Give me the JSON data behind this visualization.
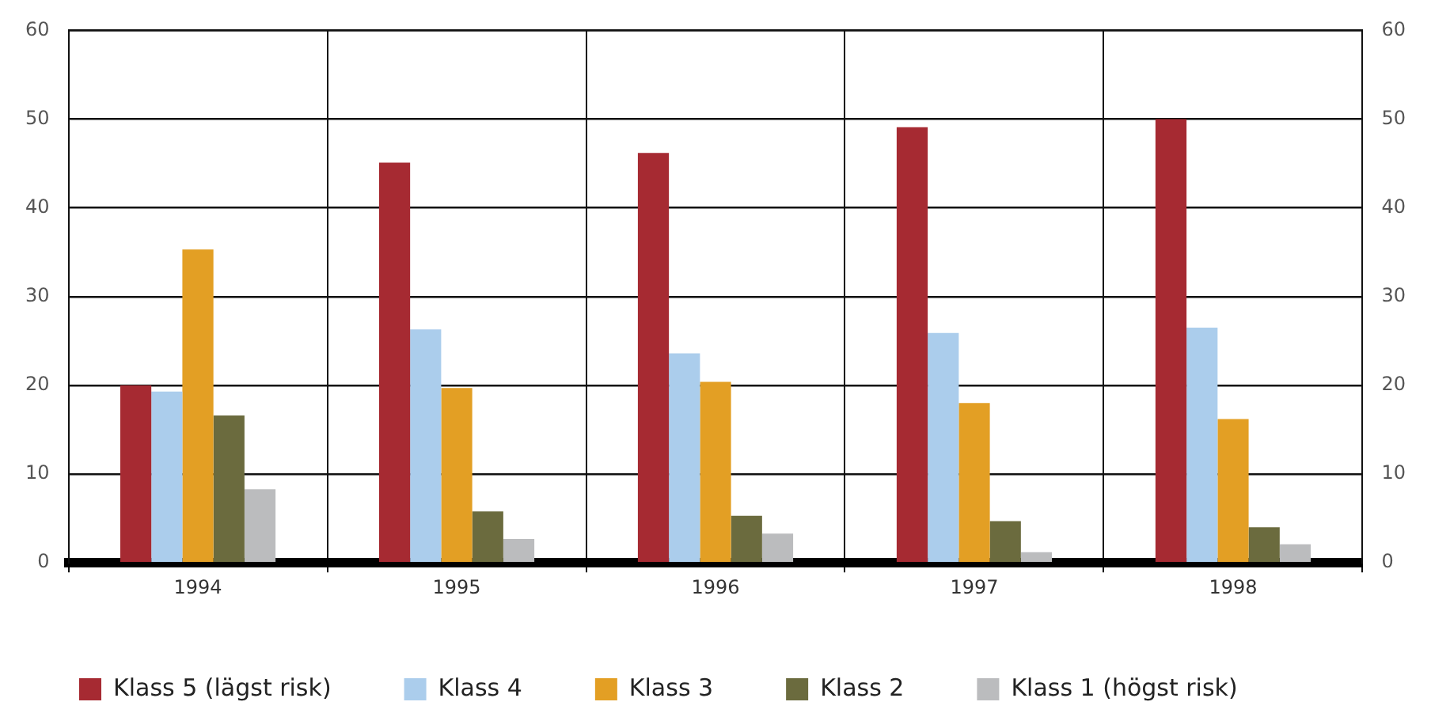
{
  "chart_data": {
    "type": "bar",
    "categories": [
      "1994",
      "1995",
      "1996",
      "1997",
      "1998"
    ],
    "series": [
      {
        "name": "Klass 5 (lägst risk)",
        "color": "#a62a32",
        "values": [
          20,
          45.1,
          46.2,
          49.1,
          50
        ]
      },
      {
        "name": "Klass 4",
        "color": "#abcdec",
        "values": [
          19.3,
          26.3,
          23.6,
          25.9,
          26.5
        ]
      },
      {
        "name": "Klass 3",
        "color": "#e39f24",
        "values": [
          35.3,
          19.7,
          20.4,
          18,
          16.2
        ]
      },
      {
        "name": "Klass 2",
        "color": "#6b6b3e",
        "values": [
          16.6,
          5.8,
          5.3,
          4.7,
          4
        ]
      },
      {
        "name": "Klass 1 (högst risk)",
        "color": "#bbbcbe",
        "values": [
          8.3,
          2.7,
          3.3,
          1.2,
          2.1
        ]
      }
    ],
    "ylim": [
      0,
      60
    ],
    "yticks": [
      0,
      10,
      20,
      30,
      40,
      50,
      60
    ],
    "y2lim": [
      0,
      60
    ],
    "y2ticks": [
      0,
      10,
      20,
      30,
      40,
      50,
      60
    ],
    "grid": true,
    "legend": "bottom"
  }
}
